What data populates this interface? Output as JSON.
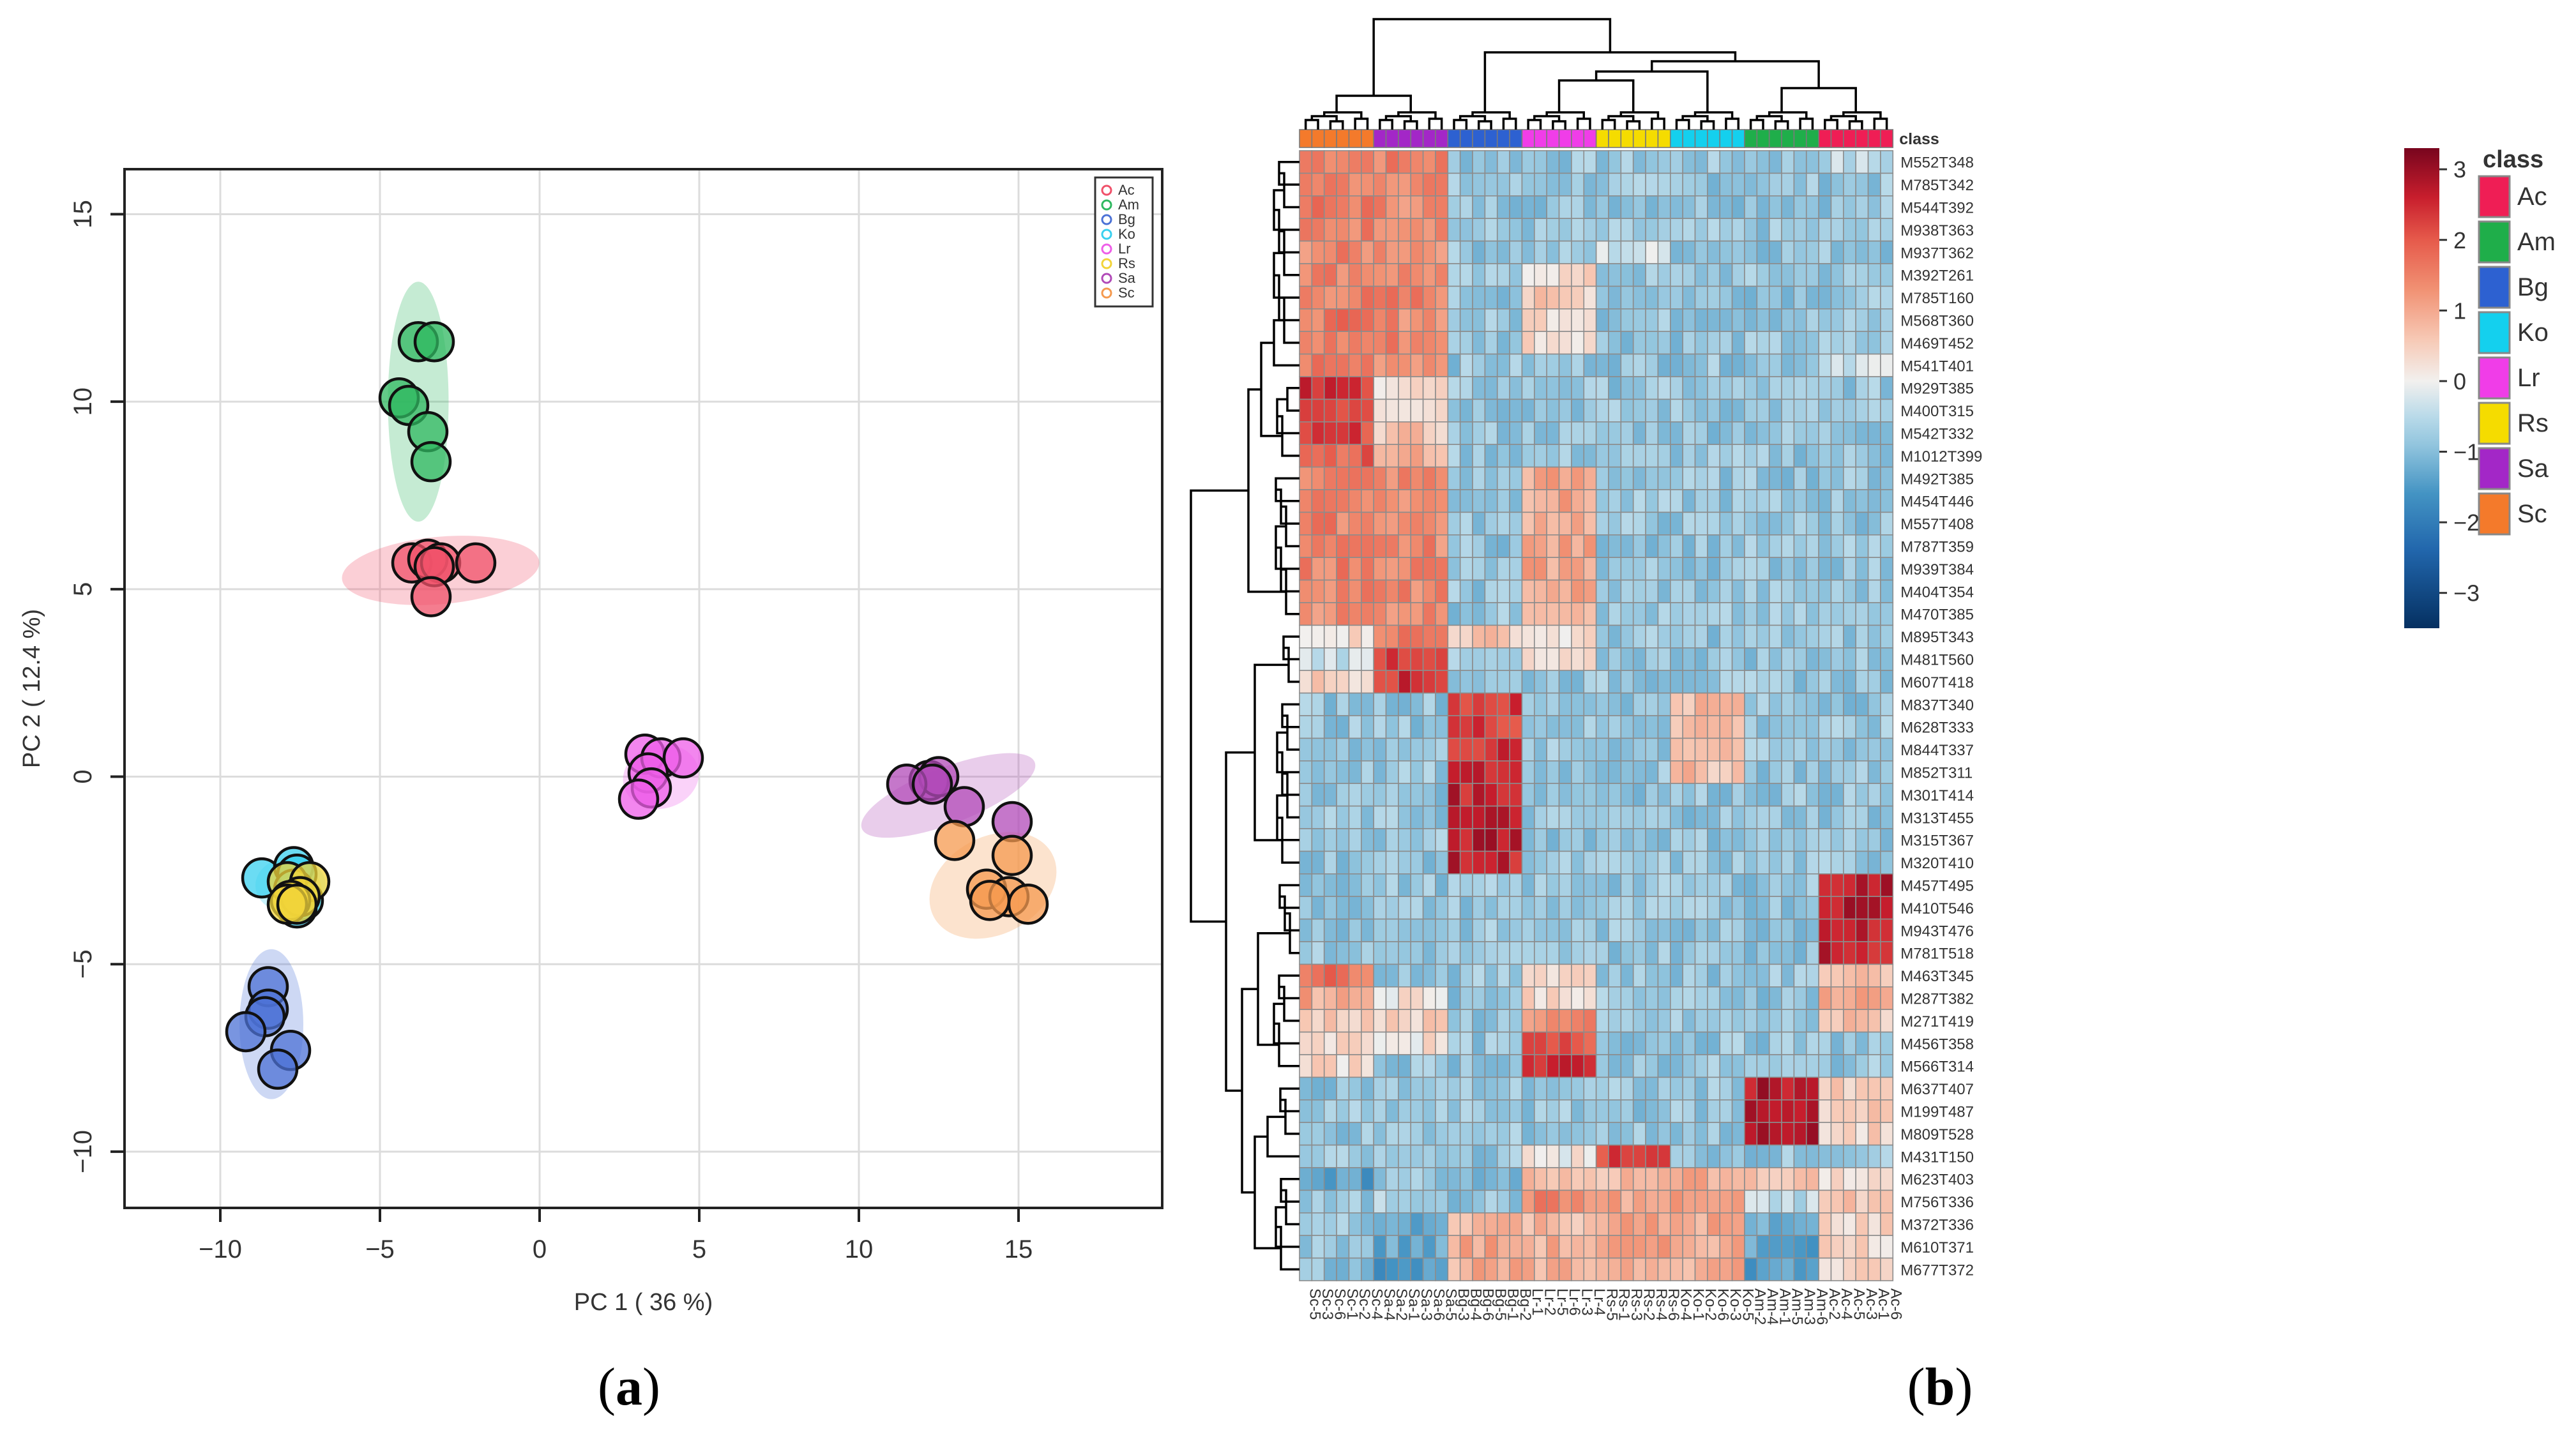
{
  "panels": {
    "a": {
      "label_open": "(",
      "letter": "a",
      "label_close": ")"
    },
    "b": {
      "label_open": "(",
      "letter": "b",
      "label_close": ")"
    }
  },
  "chart_data": [
    {
      "type": "scatter",
      "panel": "a",
      "title": "",
      "xlabel": "PC 1 ( 36 %)",
      "ylabel": "PC 2 ( 12.4 %)",
      "xlim": [
        -13,
        19.5
      ],
      "ylim": [
        -11.5,
        16.2
      ],
      "xticks": [
        -10,
        -5,
        0,
        5,
        10,
        15
      ],
      "yticks": [
        -10,
        -5,
        0,
        5,
        10,
        15
      ],
      "grid": true,
      "legend_position": "top-right",
      "series": [
        {
          "name": "Ac",
          "color": "#f0516a",
          "points": [
            [
              -4,
              5.7
            ],
            [
              -3.5,
              5.8
            ],
            [
              -3.1,
              5.7
            ],
            [
              -2,
              5.7
            ],
            [
              -3.3,
              5.6
            ],
            [
              -3.4,
              4.8
            ]
          ],
          "ellipse": {
            "cx": -3.1,
            "cy": 5.5,
            "rx": 3.1,
            "ry": 0.9,
            "angle": -5
          }
        },
        {
          "name": "Am",
          "color": "#2fb860",
          "points": [
            [
              -3.8,
              11.6
            ],
            [
              -3.3,
              11.6
            ],
            [
              -4.4,
              10.1
            ],
            [
              -4.1,
              9.9
            ],
            [
              -3.5,
              9.2
            ],
            [
              -3.4,
              8.4
            ]
          ],
          "ellipse": {
            "cx": -3.8,
            "cy": 10.0,
            "rx": 0.95,
            "ry": 3.2,
            "angle": 0
          }
        },
        {
          "name": "Bg",
          "color": "#4c72d6",
          "points": [
            [
              -8.5,
              -5.6
            ],
            [
              -8.5,
              -6.2
            ],
            [
              -8.6,
              -6.4
            ],
            [
              -9.2,
              -6.8
            ],
            [
              -7.8,
              -7.3
            ],
            [
              -8.2,
              -7.8
            ]
          ],
          "ellipse": {
            "cx": -8.4,
            "cy": -6.6,
            "rx": 1.0,
            "ry": 2.0,
            "angle": 0
          }
        },
        {
          "name": "Ko",
          "color": "#3ad0ef",
          "points": [
            [
              -8.7,
              -2.7
            ],
            [
              -7.7,
              -2.4
            ],
            [
              -7.6,
              -2.6
            ],
            [
              -7.7,
              -3.0
            ],
            [
              -7.4,
              -3.3
            ],
            [
              -7.6,
              -3.5
            ]
          ],
          "ellipse": {
            "cx": -7.8,
            "cy": -2.9,
            "rx": 1.1,
            "ry": 0.75,
            "angle": 0
          }
        },
        {
          "name": "Lr",
          "color": "#ee5ee8",
          "points": [
            [
              3.3,
              0.6
            ],
            [
              3.8,
              0.5
            ],
            [
              4.5,
              0.5
            ],
            [
              3.4,
              0.1
            ],
            [
              3.5,
              -0.3
            ],
            [
              3.1,
              -0.6
            ]
          ],
          "ellipse": {
            "cx": 3.8,
            "cy": 0.0,
            "rx": 1.2,
            "ry": 0.85,
            "angle": -15
          }
        },
        {
          "name": "Rs",
          "color": "#f2d43a",
          "points": [
            [
              -7.9,
              -2.8
            ],
            [
              -7.2,
              -2.8
            ],
            [
              -7.5,
              -3.2
            ],
            [
              -7.8,
              -3.3
            ],
            [
              -7.9,
              -3.4
            ],
            [
              -7.6,
              -3.4
            ]
          ],
          "ellipse": {
            "cx": -7.6,
            "cy": -3.1,
            "rx": 0.8,
            "ry": 0.7,
            "angle": 0
          }
        },
        {
          "name": "Sa",
          "color": "#b14ab8",
          "points": [
            [
              12.2,
              -0.1
            ],
            [
              12.5,
              0.0
            ],
            [
              11.5,
              -0.2
            ],
            [
              12.3,
              -0.2
            ],
            [
              13.3,
              -0.8
            ],
            [
              14.8,
              -1.2
            ]
          ],
          "ellipse": {
            "cx": 12.8,
            "cy": -0.5,
            "rx": 2.9,
            "ry": 0.75,
            "angle": -21
          }
        },
        {
          "name": "Sc",
          "color": "#f59a4f",
          "points": [
            [
              13,
              -1.7
            ],
            [
              14.8,
              -2.1
            ],
            [
              14.0,
              -3.0
            ],
            [
              14.7,
              -3.2
            ],
            [
              14.1,
              -3.3
            ],
            [
              15.3,
              -3.4
            ]
          ],
          "ellipse": {
            "cx": 14.2,
            "cy": -2.9,
            "rx": 2.1,
            "ry": 1.3,
            "angle": -28
          }
        }
      ]
    },
    {
      "type": "heatmap",
      "panel": "b",
      "title": "",
      "annotation_label": "class",
      "colorbar_ticks": [
        3,
        2,
        1,
        0,
        -1,
        -2,
        -3
      ],
      "colorbar_range": [
        -3.5,
        3.3
      ],
      "legend_title": "class",
      "classes": [
        {
          "name": "Ac",
          "color": "#ef1e55"
        },
        {
          "name": "Am",
          "color": "#1fae4a"
        },
        {
          "name": "Bg",
          "color": "#2d61d1"
        },
        {
          "name": "Ko",
          "color": "#14d0ee"
        },
        {
          "name": "Lr",
          "color": "#f03de8"
        },
        {
          "name": "Rs",
          "color": "#f5dc00"
        },
        {
          "name": "Sa",
          "color": "#a327c7"
        },
        {
          "name": "Sc",
          "color": "#f47a2b"
        }
      ],
      "column_groups": [
        "Sc",
        "Sa",
        "Bg",
        "Lr",
        "Rs",
        "Ko",
        "Am",
        "Ac"
      ],
      "columns": [
        "Sc-5",
        "Sc-3",
        "Sc-6",
        "Sc-1",
        "Sc-2",
        "Sc-4",
        "Sa-4",
        "Sa-2",
        "Sa-1",
        "Sa-3",
        "Sa-6",
        "Sa-5",
        "Bg-3",
        "Bg-4",
        "Bg-6",
        "Bg-5",
        "Bg-1",
        "Bg-2",
        "Lr-1",
        "Lr-2",
        "Lr-5",
        "Lr-6",
        "Lr-3",
        "Lr-4",
        "Rs-5",
        "Rs-1",
        "Rs-3",
        "Rs-2",
        "Rs-4",
        "Rs-6",
        "Ko-4",
        "Ko-1",
        "Ko-2",
        "Ko-6",
        "Ko-3",
        "Ko-5",
        "Am-2",
        "Am-4",
        "Am-1",
        "Am-5",
        "Am-3",
        "Am-6",
        "Ac-2",
        "Ac-4",
        "Ac-5",
        "Ac-3",
        "Ac-1",
        "Ac-6"
      ],
      "rows": [
        "M552T348",
        "M785T342",
        "M544T392",
        "M938T363",
        "M937T362",
        "M392T261",
        "M785T160",
        "M568T360",
        "M469T452",
        "M541T401",
        "M929T385",
        "M400T315",
        "M542T332",
        "M1012T399",
        "M492T385",
        "M454T446",
        "M557T408",
        "M787T359",
        "M939T384",
        "M404T354",
        "M470T385",
        "M895T343",
        "M481T560",
        "M607T418",
        "M837T340",
        "M628T333",
        "M844T337",
        "M852T311",
        "M301T414",
        "M313T455",
        "M315T367",
        "M320T410",
        "M457T495",
        "M410T546",
        "M943T476",
        "M781T518",
        "M463T345",
        "M287T382",
        "M271T419",
        "M456T358",
        "M566T314",
        "M637T407",
        "M199T487",
        "M809T528",
        "M431T150",
        "M623T403",
        "M756T336",
        "M372T336",
        "M610T371",
        "M677T372"
      ],
      "row_profiles": {
        "M552T348": {
          "Sc": 1.6,
          "Sa": 1.5,
          "Ac": -0.5
        },
        "M785T342": {
          "Sc": 1.5,
          "Sa": 1.5
        },
        "M544T392": {
          "Sc": 1.6,
          "Sa": 1.4
        },
        "M938T363": {
          "Sc": 1.5,
          "Sa": 1.5
        },
        "M937T362": {
          "Sc": 1.4,
          "Sa": 1.4,
          "Rs": -0.3
        },
        "M392T261": {
          "Sc": 1.5,
          "Sa": 1.4,
          "Lr": 0.3
        },
        "M785T160": {
          "Sc": 1.5,
          "Sa": 1.5,
          "Lr": 0.5
        },
        "M568T360": {
          "Sc": 1.6,
          "Sa": 1.4,
          "Lr": 0.4
        },
        "M469T452": {
          "Sc": 1.5,
          "Sa": 1.5,
          "Lr": 0.4
        },
        "M541T401": {
          "Sc": 1.6,
          "Sa": 1.4,
          "Ac": -0.2
        },
        "M929T385": {
          "Sc": 2.4,
          "Sa": 0.3
        },
        "M400T315": {
          "Sc": 2.3,
          "Sa": 0.4
        },
        "M542T332": {
          "Sc": 2.2,
          "Sa": 0.6
        },
        "M1012T399": {
          "Sc": 1.9,
          "Sa": 0.9
        },
        "M492T385": {
          "Sc": 1.5,
          "Sa": 1.4,
          "Lr": 1.0
        },
        "M454T446": {
          "Sc": 1.6,
          "Sa": 1.3,
          "Lr": 1.0
        },
        "M557T408": {
          "Sc": 1.5,
          "Sa": 1.4,
          "Lr": 1.0
        },
        "M787T359": {
          "Sc": 1.4,
          "Sa": 1.4,
          "Lr": 1.0
        },
        "M939T384": {
          "Sc": 1.5,
          "Sa": 1.5,
          "Lr": 1.0
        },
        "M404T354": {
          "Sc": 1.5,
          "Sa": 1.4,
          "Lr": 1.0
        },
        "M470T385": {
          "Sc": 1.4,
          "Sa": 1.4,
          "Lr": 1.0
        },
        "M895T343": {
          "Sc": 0.3,
          "Sa": 1.6,
          "Bg": 0.6,
          "Lr": 0.2
        },
        "M481T560": {
          "Sc": -0.3,
          "Sa": 2.4,
          "Lr": 0.1
        },
        "M607T418": {
          "Sc": 0.5,
          "Sa": 2.4
        },
        "M837T340": {
          "Bg": 2.3,
          "Ko": 0.8
        },
        "M628T333": {
          "Bg": 2.3,
          "Ko": 0.8
        },
        "M844T337": {
          "Bg": 2.4,
          "Ko": 0.8
        },
        "M852T311": {
          "Bg": 2.5,
          "Ko": 0.7
        },
        "M301T414": {
          "Bg": 2.6
        },
        "M313T455": {
          "Bg": 2.6
        },
        "M315T367": {
          "Bg": 2.7
        },
        "M320T410": {
          "Bg": 2.6
        },
        "M457T495": {
          "Ac": 2.7
        },
        "M410T546": {
          "Ac": 2.8
        },
        "M943T476": {
          "Ac": 2.7
        },
        "M781T518": {
          "Ac": 2.6
        },
        "M463T345": {
          "Sc": 1.7,
          "Lr": 0.5,
          "Ac": 0.8
        },
        "M287T382": {
          "Sc": 1.0,
          "Sa": 0.2,
          "Lr": 0.4,
          "Ac": 1.0
        },
        "M271T419": {
          "Sc": 0.6,
          "Sa": 0.4,
          "Lr": 1.3,
          "Ac": 0.6
        },
        "M456T358": {
          "Sc": 0.4,
          "Sa": 0.2,
          "Lr": 2.0
        },
        "M566T314": {
          "Sc": 0.3,
          "Lr": 2.4
        },
        "M637T407": {
          "Am": 2.8,
          "Ac": 0.4
        },
        "M199T487": {
          "Am": 2.8,
          "Ac": 0.5
        },
        "M809T528": {
          "Am": 2.7,
          "Ac": 0.4
        },
        "M431T150": {
          "Rs": 2.2,
          "Lr": 0.1
        },
        "M623T403": {
          "Sc": -1.5,
          "Sa": -0.8,
          "Bg": -1.0,
          "Lr": 0.6,
          "Rs": 0.7,
          "Ko": 1.0,
          "Am": 0.5,
          "Ac": 0.3
        },
        "M756T336": {
          "Sc": -0.9,
          "Sa": -0.6,
          "Lr": 1.4,
          "Rs": 1.0,
          "Ko": 1.1,
          "Am": -0.5,
          "Ac": 0.6
        },
        "M372T336": {
          "Sc": -0.8,
          "Sa": -1.3,
          "Bg": 0.9,
          "Lr": 0.8,
          "Rs": 1.0,
          "Ko": 1.0,
          "Am": -1.3,
          "Ac": 0.4
        },
        "M610T371": {
          "Sc": -0.8,
          "Sa": -1.3,
          "Bg": 1.0,
          "Lr": 0.9,
          "Rs": 1.0,
          "Ko": 1.0,
          "Am": -1.3,
          "Ac": 0.4
        },
        "M677T372": {
          "Sc": -0.9,
          "Sa": -1.5,
          "Bg": 0.9,
          "Lr": 0.8,
          "Rs": 1.0,
          "Ko": 1.0,
          "Am": -1.4,
          "Ac": 0.3
        }
      },
      "default_value": -0.85
    }
  ]
}
